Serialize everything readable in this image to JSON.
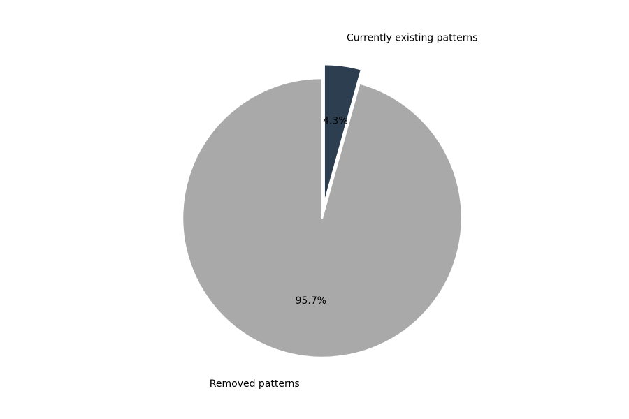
{
  "chart_data": {
    "type": "pie",
    "title": "",
    "slices": [
      {
        "label": "Currently existing patterns",
        "value": 4.3,
        "pct_label": "4.3%",
        "color": "#2c3e50",
        "exploded": true
      },
      {
        "label": "Removed patterns",
        "value": 95.7,
        "pct_label": "95.7%",
        "color": "#a9a9a9",
        "exploded": false
      }
    ],
    "start_angle_deg": 90,
    "direction": "clockwise",
    "slice_edge_color": "#ffffff"
  }
}
